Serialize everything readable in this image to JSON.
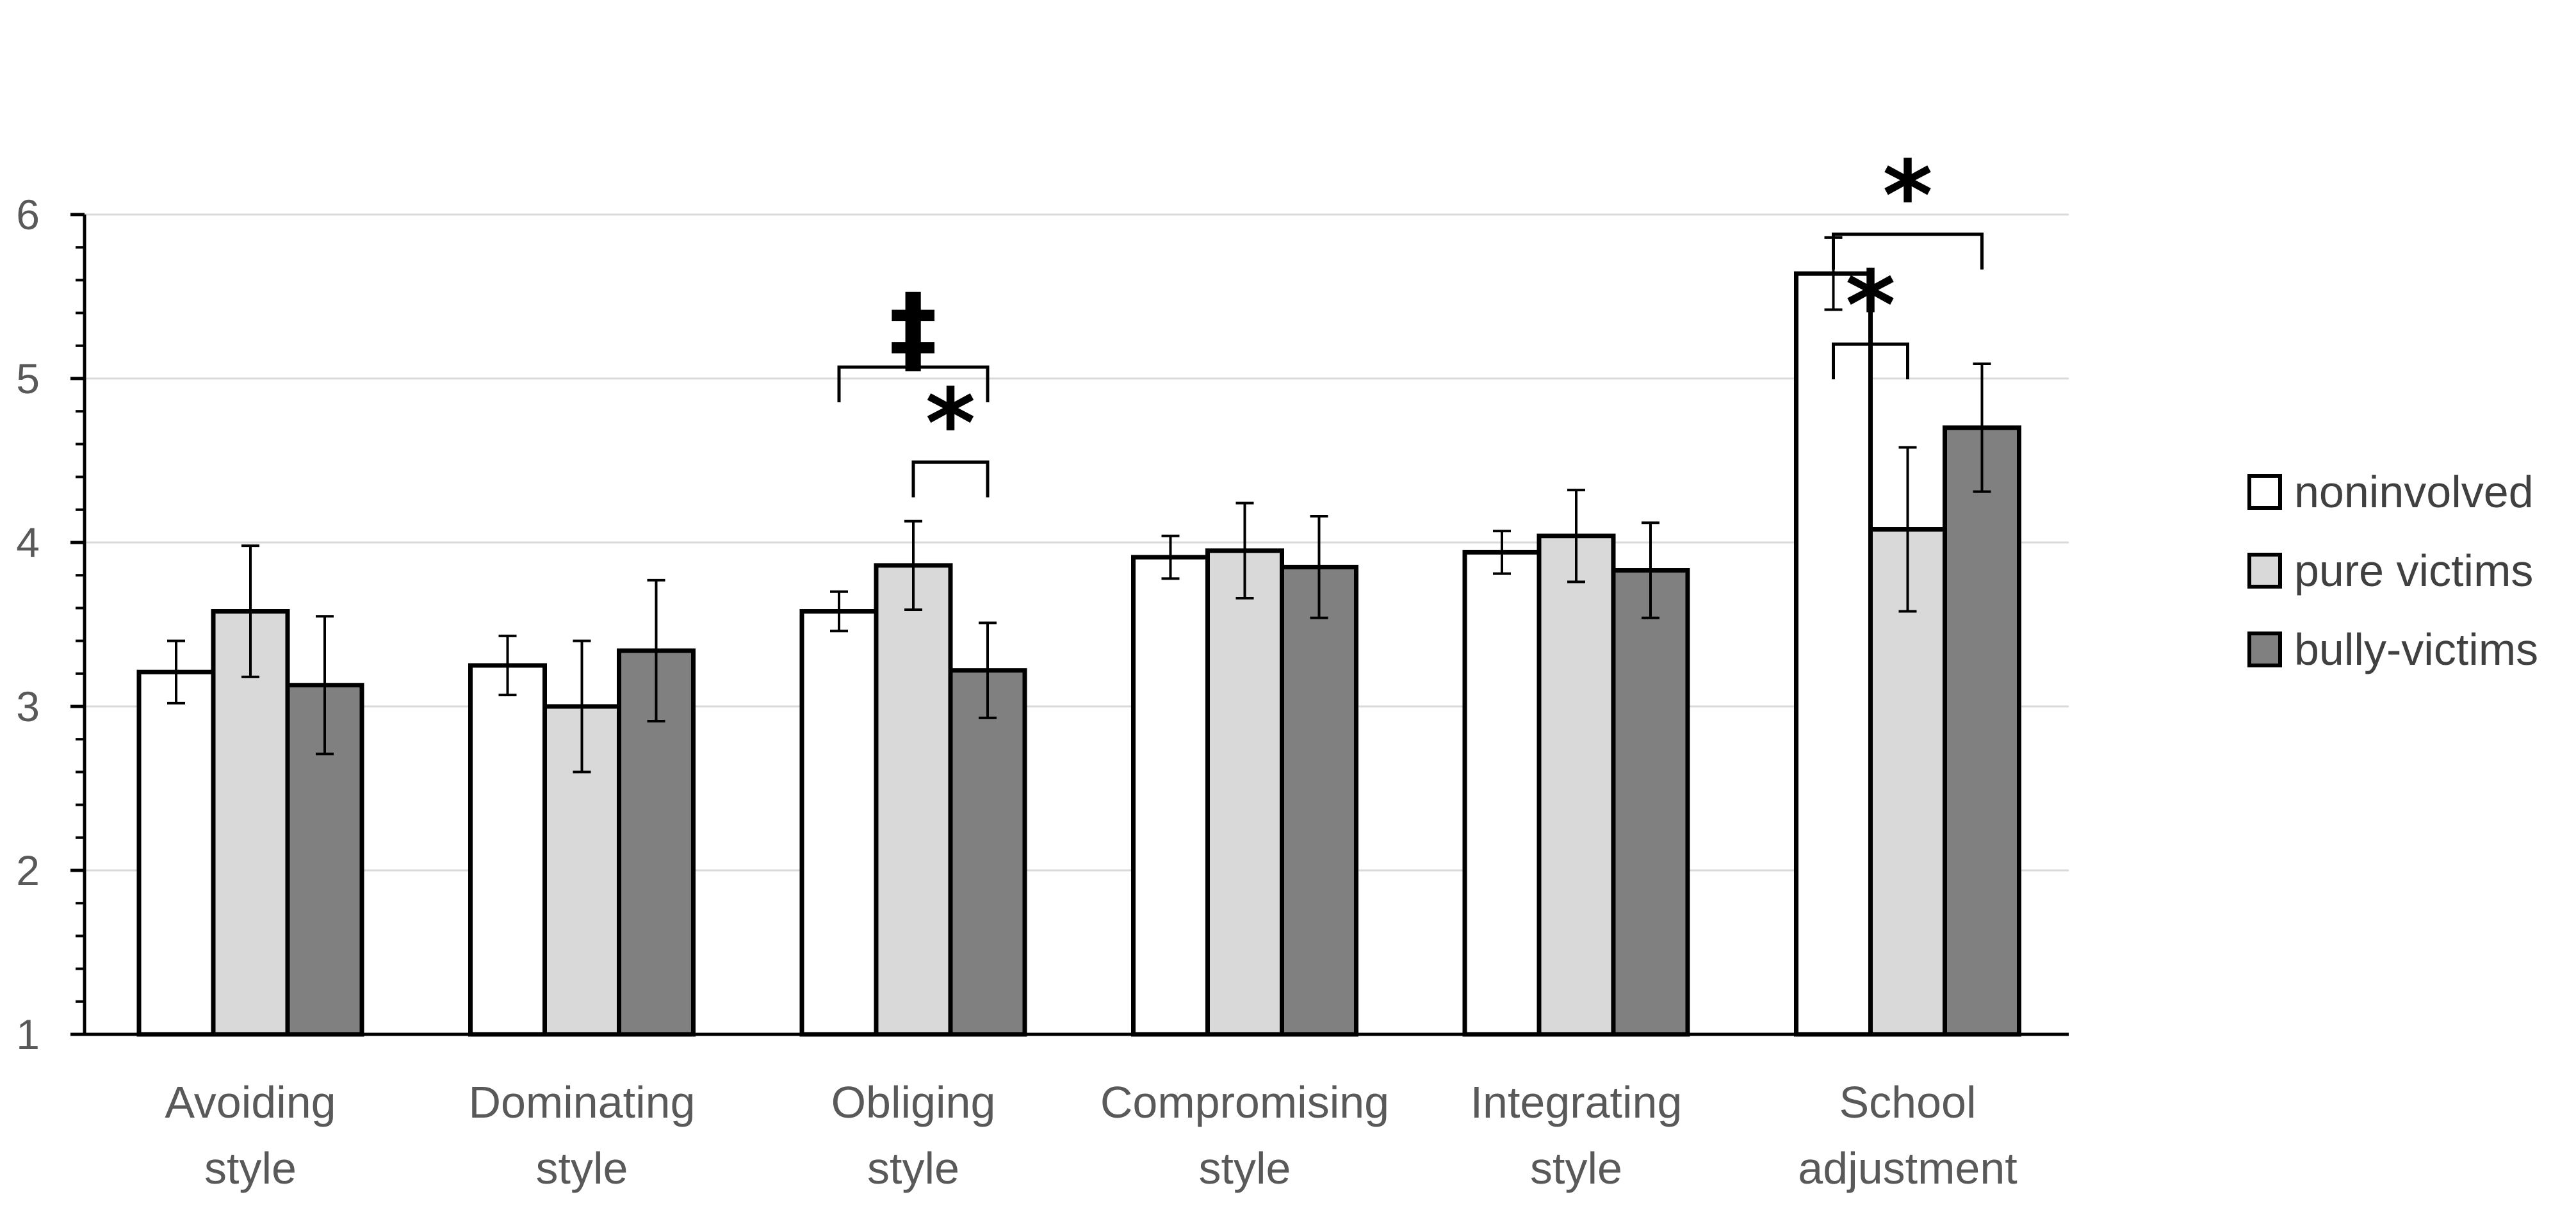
{
  "chart_data": {
    "type": "bar",
    "title": "",
    "xlabel": "",
    "ylabel": "",
    "ylim": [
      1,
      6
    ],
    "yticks": [
      "1",
      "2",
      "3",
      "4",
      "5",
      "6"
    ],
    "grid": true,
    "legend_position": "right",
    "categories": [
      [
        "Avoiding",
        "style"
      ],
      [
        "Dominating",
        "style"
      ],
      [
        "Obliging",
        "style"
      ],
      [
        "Compromising",
        "style"
      ],
      [
        "Integrating",
        "style"
      ],
      [
        "School",
        "adjustment"
      ]
    ],
    "series": [
      {
        "name": "noninvolved",
        "color": "#ffffff",
        "values": [
          3.21,
          3.25,
          3.58,
          3.91,
          3.94,
          5.64
        ],
        "errors": [
          0.19,
          0.18,
          0.12,
          0.13,
          0.13,
          0.22
        ]
      },
      {
        "name": "pure victims",
        "color": "#d9d9d9",
        "values": [
          3.58,
          3.0,
          3.86,
          3.95,
          4.04,
          4.08
        ],
        "errors": [
          0.4,
          0.4,
          0.27,
          0.29,
          0.28,
          0.5
        ]
      },
      {
        "name": "bully-victims",
        "color": "#808080",
        "values": [
          3.13,
          3.34,
          3.22,
          3.85,
          3.83,
          4.7
        ],
        "errors": [
          0.42,
          0.43,
          0.29,
          0.31,
          0.29,
          0.39
        ]
      }
    ],
    "annotations": [
      {
        "category": 2,
        "from": 0,
        "to": 2,
        "label": "‡",
        "level": 5.07
      },
      {
        "category": 2,
        "from": 1,
        "to": 2,
        "label": "*",
        "level": 4.49
      },
      {
        "category": 5,
        "from": 0,
        "to": 1,
        "label": "*",
        "level": 5.21
      },
      {
        "category": 5,
        "from": 0,
        "to": 2,
        "label": "*",
        "level": 5.88
      }
    ]
  }
}
